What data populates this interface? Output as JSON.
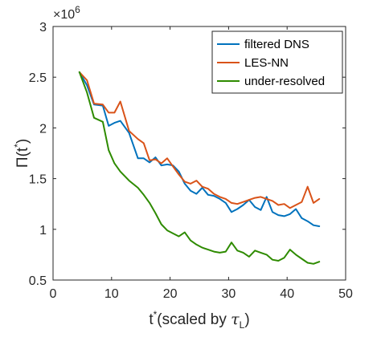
{
  "chart_data": {
    "type": "line",
    "xlabel": {
      "main": "t",
      "sup": "*",
      "rest": "(scaled by ",
      "tau": "τ",
      "tau_sub": "L",
      "close": ")"
    },
    "ylabel": {
      "main": "Π(t",
      "sup": "*",
      "close": ")"
    },
    "y_multiplier": {
      "base": "×10",
      "exp": "6"
    },
    "xlim": [
      0,
      50
    ],
    "ylim": [
      0.5,
      3
    ],
    "xticks": [
      0,
      10,
      20,
      30,
      40,
      50
    ],
    "yticks": [
      0.5,
      1,
      1.5,
      2,
      2.5,
      3
    ],
    "xtick_labels": [
      "0",
      "10",
      "20",
      "30",
      "40",
      "50"
    ],
    "ytick_labels": [
      "0.5",
      "1",
      "1.5",
      "2",
      "2.5",
      "3"
    ],
    "grid": false,
    "legend_position": "top-right",
    "series": [
      {
        "name": "filtered DNS",
        "color": "#0072BD",
        "x": [
          4.5,
          5.8,
          7,
          8.5,
          9.5,
          10.5,
          11.5,
          13,
          14.5,
          15.5,
          16.5,
          17.5,
          18.5,
          19.5,
          20.5,
          21.5,
          22.5,
          23.5,
          24.5,
          25.5,
          26.5,
          27.5,
          28.5,
          29.5,
          30.5,
          31.5,
          32.5,
          33.5,
          34.5,
          35.5,
          36.5,
          37.5,
          38.5,
          39.5,
          40.5,
          41.5,
          42.5,
          43.5,
          44.5,
          45.5
        ],
        "y": [
          2.55,
          2.42,
          2.23,
          2.22,
          2.02,
          2.05,
          2.07,
          1.95,
          1.7,
          1.7,
          1.66,
          1.71,
          1.63,
          1.64,
          1.63,
          1.57,
          1.45,
          1.38,
          1.35,
          1.41,
          1.34,
          1.33,
          1.3,
          1.26,
          1.17,
          1.2,
          1.24,
          1.29,
          1.22,
          1.19,
          1.32,
          1.17,
          1.14,
          1.13,
          1.15,
          1.2,
          1.11,
          1.08,
          1.04,
          1.03
        ]
      },
      {
        "name": "LES-NN",
        "color": "#D95319",
        "x": [
          4.5,
          5.8,
          7,
          8.5,
          9.5,
          10.5,
          11.5,
          13,
          14.5,
          15.5,
          16.5,
          17.5,
          18.5,
          19.5,
          20.5,
          21.5,
          22.5,
          23.5,
          24.5,
          25.5,
          26.5,
          27.5,
          28.5,
          29.5,
          30.5,
          31.5,
          32.5,
          33.5,
          34.5,
          35.5,
          36.5,
          37.5,
          38.5,
          39.5,
          40.5,
          41.5,
          42.5,
          43.5,
          44.5,
          45.5
        ],
        "y": [
          2.55,
          2.47,
          2.24,
          2.23,
          2.15,
          2.15,
          2.26,
          1.97,
          1.89,
          1.85,
          1.68,
          1.69,
          1.65,
          1.7,
          1.62,
          1.54,
          1.47,
          1.45,
          1.48,
          1.42,
          1.4,
          1.35,
          1.32,
          1.3,
          1.26,
          1.25,
          1.27,
          1.29,
          1.31,
          1.32,
          1.3,
          1.28,
          1.24,
          1.25,
          1.21,
          1.24,
          1.27,
          1.42,
          1.26,
          1.3
        ]
      },
      {
        "name": "under-resolved",
        "color": "#2E8B00",
        "x": [
          4.5,
          5.8,
          7,
          8.5,
          9.5,
          10.5,
          11.5,
          13,
          14.5,
          15.5,
          16.5,
          17.5,
          18.5,
          19.5,
          20.5,
          21.5,
          22.5,
          23.5,
          24.5,
          25.5,
          26.5,
          27.5,
          28.5,
          29.5,
          30.5,
          31.5,
          32.5,
          33.5,
          34.5,
          35.5,
          36.5,
          37.5,
          38.5,
          39.5,
          40.5,
          41.5,
          42.5,
          43.5,
          44.5,
          45.5
        ],
        "y": [
          2.55,
          2.35,
          2.1,
          2.06,
          1.78,
          1.65,
          1.57,
          1.48,
          1.41,
          1.34,
          1.26,
          1.16,
          1.05,
          0.99,
          0.96,
          0.93,
          0.97,
          0.89,
          0.85,
          0.82,
          0.8,
          0.78,
          0.77,
          0.78,
          0.87,
          0.79,
          0.77,
          0.73,
          0.79,
          0.77,
          0.75,
          0.7,
          0.69,
          0.72,
          0.8,
          0.75,
          0.71,
          0.67,
          0.66,
          0.68
        ]
      }
    ]
  }
}
